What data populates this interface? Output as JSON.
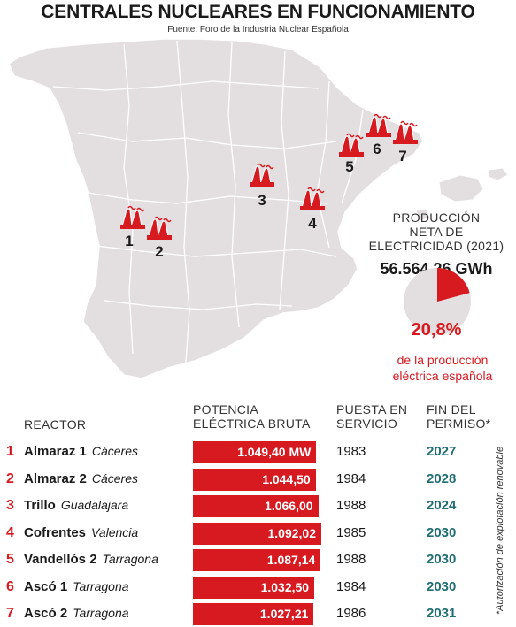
{
  "title": "CENTRALES NUCLEARES EN FUNCIONAMIENTO",
  "source": "Fuente: Foro de la Industria Nuclear Española",
  "production": {
    "label_line1": "PRODUCCIÓN",
    "label_line2": "NETA DE",
    "label_line3": "ELECTRICIDAD (2021)",
    "value": "56.564,26 GWh",
    "share_text": "20,8%",
    "share_fraction": 0.208,
    "caption_line1": "de la producción",
    "caption_line2": "eléctrica española"
  },
  "map_markers": [
    "1",
    "2",
    "3",
    "4",
    "5",
    "6",
    "7"
  ],
  "table_headers": {
    "reactor": "REACTOR",
    "power_line1": "POTENCIA",
    "power_line2": "ELÉCTRICA BRUTA",
    "service_line1": "PUESTA EN",
    "service_line2": "SERVICIO",
    "end_line1": "FIN DEL",
    "end_line2": "PERMISO*"
  },
  "footnote": "*Autorización de explotación renovable",
  "colors": {
    "accent": "#d71920",
    "permit": "#1f6f75",
    "map_fill": "#e3dfe0"
  },
  "icons": [
    "nuclear-plant-icon"
  ],
  "chart_data": {
    "type": "bar",
    "orientation": "horizontal",
    "unit": "MW",
    "categories": [
      "Almaraz 1",
      "Almaraz 2",
      "Trillo",
      "Cofrentes",
      "Vandellós 2",
      "Ascó 1",
      "Ascó 2"
    ],
    "values": [
      1049.4,
      1044.5,
      1066.0,
      1092.02,
      1087.14,
      1032.5,
      1027.21
    ],
    "rows": [
      {
        "num": "1",
        "name": "Almaraz 1",
        "province": "Cáceres",
        "power": "1.049,40 MW",
        "value": 1049.4,
        "year": "1983",
        "end": "2027"
      },
      {
        "num": "2",
        "name": "Almaraz 2",
        "province": "Cáceres",
        "power": "1.044,50",
        "value": 1044.5,
        "year": "1984",
        "end": "2028"
      },
      {
        "num": "3",
        "name": "Trillo",
        "province": "Guadalajara",
        "power": "1.066,00",
        "value": 1066.0,
        "year": "1988",
        "end": "2024"
      },
      {
        "num": "4",
        "name": "Cofrentes",
        "province": "Valencia",
        "power": "1.092,02",
        "value": 1092.02,
        "year": "1985",
        "end": "2030"
      },
      {
        "num": "5",
        "name": "Vandellós 2",
        "province": "Tarragona",
        "power": "1.087,14",
        "value": 1087.14,
        "year": "1988",
        "end": "2030"
      },
      {
        "num": "6",
        "name": "Ascó 1",
        "province": "Tarragona",
        "power": "1.032,50",
        "value": 1032.5,
        "year": "1984",
        "end": "2030"
      },
      {
        "num": "7",
        "name": "Ascó 2",
        "province": "Tarragona",
        "power": "1.027,21",
        "value": 1027.21,
        "year": "1986",
        "end": "2031"
      }
    ]
  }
}
